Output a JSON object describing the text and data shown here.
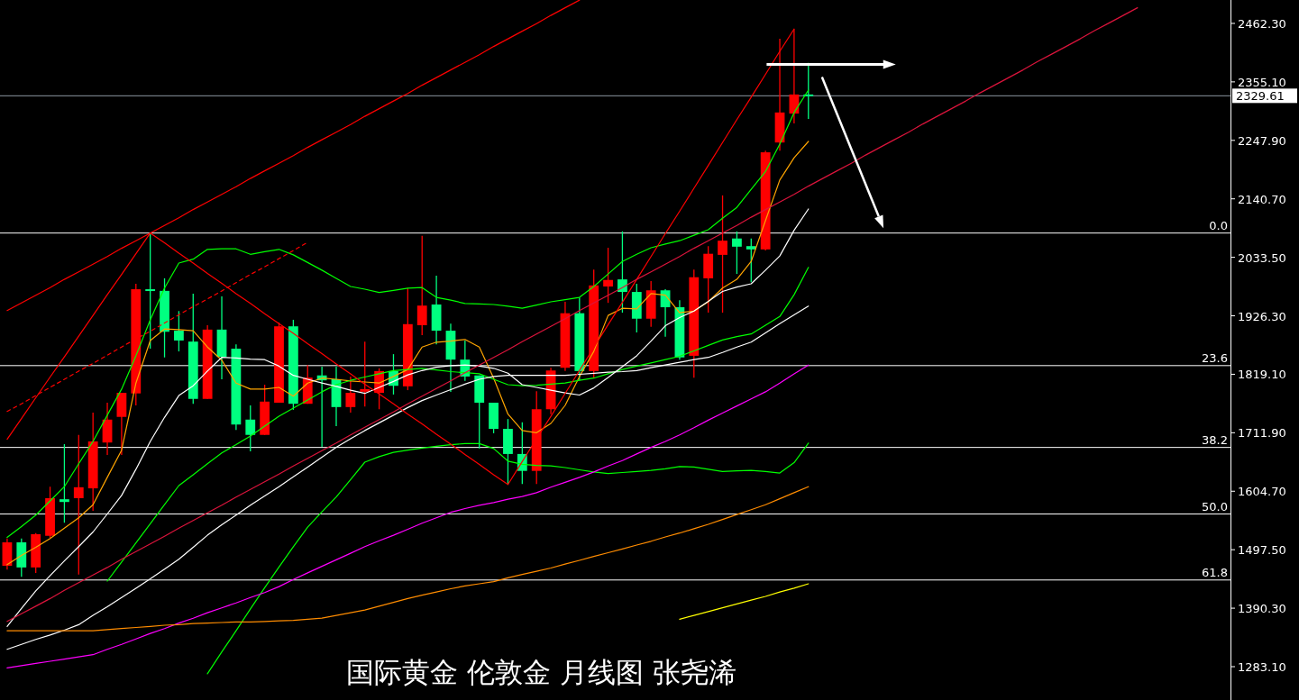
{
  "chart_data": {
    "type": "candlestick",
    "title": "国际黄金 伦敦金 月线图 张尧浠",
    "categories": [
      null,
      null,
      null,
      null,
      null,
      null,
      null,
      null,
      null,
      null,
      null,
      null,
      null,
      null,
      null,
      null,
      null,
      null,
      null,
      null,
      null,
      null,
      null,
      null,
      null,
      null,
      null,
      null,
      null,
      null,
      null,
      null,
      null,
      null,
      null,
      null,
      null,
      null,
      null,
      null,
      null,
      null,
      null,
      null,
      null,
      null,
      null,
      null,
      null,
      null,
      null,
      null,
      null,
      null,
      null,
      null,
      null,
      null,
      null,
      null,
      null,
      null,
      null,
      null,
      null,
      null,
      null,
      null,
      null,
      null,
      null,
      null,
      null,
      null,
      null,
      null,
      null,
      null,
      null,
      null,
      null,
      null,
      null,
      null,
      null,
      null
    ],
    "ohlc": [
      [
        1468,
        1518,
        1461,
        1511
      ],
      [
        1511,
        1518,
        1448,
        1465
      ],
      [
        1465,
        1528,
        1455,
        1526
      ],
      [
        1523,
        1613,
        1519,
        1592
      ],
      [
        1590,
        1691,
        1547,
        1585
      ],
      [
        1592,
        1708,
        1452,
        1612
      ],
      [
        1610,
        1749,
        1569,
        1696
      ],
      [
        1694,
        1767,
        1671,
        1736
      ],
      [
        1741,
        1785,
        1671,
        1785
      ],
      [
        1784,
        1985,
        1762,
        1975
      ],
      [
        1975,
        2078,
        1866,
        1972
      ],
      [
        1972,
        1995,
        1850,
        1897
      ],
      [
        1899,
        1935,
        1861,
        1881
      ],
      [
        1879,
        1967,
        1765,
        1774
      ],
      [
        1774,
        1909,
        1774,
        1901
      ],
      [
        1901,
        1962,
        1810,
        1851
      ],
      [
        1866,
        1874,
        1717,
        1727
      ],
      [
        1736,
        1762,
        1678,
        1708
      ],
      [
        1708,
        1800,
        1708,
        1769
      ],
      [
        1767,
        1914,
        1767,
        1907
      ],
      [
        1907,
        1919,
        1754,
        1765
      ],
      [
        1765,
        1836,
        1765,
        1813
      ],
      [
        1817,
        1833,
        1686,
        1808
      ],
      [
        1810,
        1833,
        1724,
        1759
      ],
      [
        1759,
        1815,
        1749,
        1785
      ],
      [
        1787,
        1879,
        1760,
        1792
      ],
      [
        1785,
        1830,
        1755,
        1825
      ],
      [
        1825,
        1856,
        1782,
        1798
      ],
      [
        1797,
        1977,
        1790,
        1911
      ],
      [
        1909,
        2073,
        1891,
        1945
      ],
      [
        1947,
        2000,
        1874,
        1899
      ],
      [
        1899,
        1912,
        1787,
        1846
      ],
      [
        1846,
        1881,
        1807,
        1815
      ],
      [
        1817,
        1817,
        1683,
        1767
      ],
      [
        1767,
        1767,
        1711,
        1719
      ],
      [
        1719,
        1737,
        1617,
        1673
      ],
      [
        1673,
        1731,
        1618,
        1642
      ],
      [
        1642,
        1788,
        1618,
        1755
      ],
      [
        1755,
        1831,
        1746,
        1826
      ],
      [
        1831,
        1952,
        1825,
        1931
      ],
      [
        1931,
        1960,
        1808,
        1825
      ],
      [
        1825,
        2011,
        1812,
        1982
      ],
      [
        1980,
        2051,
        1950,
        1992
      ],
      [
        1993,
        2081,
        1932,
        1970
      ],
      [
        1970,
        1985,
        1896,
        1921
      ],
      [
        1921,
        1990,
        1906,
        1973
      ],
      [
        1973,
        1975,
        1888,
        1942
      ],
      [
        1942,
        1955,
        1846,
        1850
      ],
      [
        1853,
        2011,
        1813,
        1997
      ],
      [
        1995,
        2054,
        1932,
        2040
      ],
      [
        2038,
        2147,
        1932,
        2064
      ],
      [
        2068,
        2081,
        2003,
        2053
      ],
      [
        2054,
        2068,
        1988,
        2048
      ],
      [
        2048,
        2229,
        2046,
        2226
      ],
      [
        2244,
        2434,
        2229,
        2299
      ],
      [
        2297,
        2452,
        2279,
        2332
      ],
      [
        2332,
        2390,
        2287,
        2330
      ],
      null,
      null,
      null,
      null,
      null,
      null,
      null,
      null,
      null,
      null,
      null,
      null,
      null,
      null,
      null,
      null,
      null,
      null,
      null,
      null,
      null,
      null,
      null,
      null,
      null,
      null,
      null,
      null,
      null
    ],
    "colors": [
      "#ff0000",
      "#00ff80",
      "#ff0000",
      "#ff0000",
      "#00ff80",
      "#ff0000",
      "#ff0000",
      "#ff0000",
      "#ff0000",
      "#ff0000",
      "#00ff80",
      "#00ff80",
      "#00ff80",
      "#00ff80",
      "#ff0000",
      "#00ff80",
      "#00ff80",
      "#00ff80",
      "#ff0000",
      "#ff0000",
      "#00ff80",
      "#ff0000",
      "#00ff80",
      "#00ff80",
      "#ff0000",
      "#ff0000",
      "#ff0000",
      "#00ff80",
      "#ff0000",
      "#ff0000",
      "#00ff80",
      "#00ff80",
      "#00ff80",
      "#00ff80",
      "#00ff80",
      "#00ff80",
      "#00ff80",
      "#ff0000",
      "#ff0000",
      "#ff0000",
      "#00ff80",
      "#ff0000",
      "#ff0000",
      "#00ff80",
      "#00ff80",
      "#ff0000",
      "#00ff80",
      "#00ff80",
      "#ff0000",
      "#ff0000",
      "#ff0000",
      "#00ff80",
      "#00ff80",
      "#ff0000",
      "#ff0000",
      "#ff0000",
      "#00ff80",
      null,
      null,
      null,
      null,
      null,
      null,
      null,
      null,
      null,
      null,
      null,
      null,
      null,
      null,
      null,
      null,
      null,
      null,
      null,
      null,
      null,
      null,
      null,
      null,
      null,
      null,
      null,
      null,
      null
    ],
    "ylim": [
      1222,
      2505.2
    ],
    "yticks": [
      {
        "value": 2462.3,
        "label": "2462.30"
      },
      {
        "value": 2355.1,
        "label": "2355.10"
      },
      {
        "value": 2247.9,
        "label": "2247.90"
      },
      {
        "value": 2140.7,
        "label": "2140.70"
      },
      {
        "value": 2033.5,
        "label": "2033.50"
      },
      {
        "value": 1926.3,
        "label": "1926.30"
      },
      {
        "value": 1819.1,
        "label": "1819.10"
      },
      {
        "value": 1711.9,
        "label": "1711.90"
      },
      {
        "value": 1604.7,
        "label": "1604.70"
      },
      {
        "value": 1497.5,
        "label": "1497.50"
      },
      {
        "value": 1390.3,
        "label": "1390.30"
      },
      {
        "value": 1283.1,
        "label": "1283.10"
      }
    ],
    "tick_labels": "y",
    "series": [
      {
        "type": "line",
        "color": "#ffa500",
        "values": [
          1470,
          1487,
          1502,
          1518,
          1537,
          1556,
          1580,
          1630,
          1680,
          1803,
          1881,
          1902,
          1901,
          1899,
          1869,
          1845,
          1803,
          1792,
          1792,
          1795,
          1779,
          1803,
          1812,
          1810,
          1807,
          1805,
          1803,
          1815,
          1828,
          1869,
          1878,
          1880,
          1883,
          1869,
          1812,
          1746,
          1716,
          1712,
          1729,
          1762,
          1815,
          1861,
          1927,
          1940,
          1939,
          1967,
          1964,
          1932,
          1935,
          1952,
          1977,
          1993,
          2026,
          2101,
          2175,
          2216,
          2246,
          null,
          null,
          null,
          null,
          null,
          null,
          null,
          null,
          null,
          null,
          null,
          null,
          null,
          null,
          null,
          null,
          null,
          null,
          null,
          null,
          null,
          null,
          null,
          null,
          null,
          null,
          null,
          null,
          null
        ]
      },
      {
        "type": "line",
        "color": "#00ff00",
        "values": [
          1520,
          1540,
          1561,
          1587,
          1613,
          1655,
          1696,
          1744,
          1792,
          1853,
          1919,
          1977,
          2023,
          2030,
          2048,
          2049,
          2049,
          2039,
          2044,
          2048,
          2038,
          2024,
          2010,
          1995,
          1980,
          1975,
          1969,
          1973,
          1977,
          1978,
          1960,
          1955,
          1949,
          1948,
          1947,
          1944,
          1940,
          1946,
          1952,
          1956,
          1960,
          1980,
          2003,
          2026,
          2039,
          2051,
          2058,
          2064,
          2074,
          2084,
          2105,
          2125,
          2158,
          2191,
          2241,
          2299,
          2340,
          null,
          null,
          null,
          null,
          null,
          null,
          null,
          null,
          null,
          null,
          null,
          null,
          null,
          null,
          null,
          null,
          null,
          null,
          null,
          null,
          null,
          null,
          null,
          null,
          null,
          null,
          null,
          null,
          null
        ]
      },
      {
        "type": "line",
        "color": "#00ff00",
        "values": [
          null,
          null,
          null,
          null,
          null,
          null,
          null,
          1440,
          1475,
          1510,
          1545,
          1580,
          1615,
          1635,
          1655,
          1675,
          1690,
          1706,
          1724,
          1742,
          1757,
          1772,
          1787,
          1800,
          1808,
          1814,
          1820,
          1826,
          1828,
          1830,
          1827,
          1824,
          1822,
          1820,
          1810,
          1800,
          1798,
          1799,
          1801,
          1803,
          1808,
          1812,
          1820,
          1828,
          1834,
          1840,
          1846,
          1852,
          1862,
          1872,
          1882,
          1888,
          1893,
          1909,
          1925,
          1965,
          2015,
          null,
          null,
          null,
          null,
          null,
          null,
          null,
          null,
          null,
          null,
          null,
          null,
          null,
          null,
          null,
          null,
          null,
          null,
          null,
          null,
          null,
          null,
          null,
          null,
          null,
          null,
          null,
          null,
          null
        ]
      },
      {
        "type": "line",
        "color": "#00ff00",
        "values": [
          null,
          null,
          null,
          null,
          null,
          null,
          null,
          null,
          null,
          null,
          null,
          null,
          null,
          null,
          1270,
          1310,
          1349,
          1389,
          1428,
          1466,
          1503,
          1539,
          1567,
          1594,
          1626,
          1658,
          1668,
          1676,
          1680,
          1684,
          1687,
          1690,
          1692,
          1692,
          1683,
          1660,
          1654,
          1652,
          1651,
          1648,
          1644,
          1640,
          1637,
          1639,
          1641,
          1643,
          1646,
          1650,
          1649,
          1645,
          1641,
          1642,
          1643,
          1641,
          1638,
          1657,
          1693,
          null,
          null,
          null,
          null,
          null,
          null,
          null,
          null,
          null,
          null,
          null,
          null,
          null,
          null,
          null,
          null,
          null,
          null,
          null,
          null,
          null,
          null,
          null,
          null,
          null,
          null,
          null,
          null,
          null
        ]
      },
      {
        "type": "line",
        "color": "#ffffff",
        "values": [
          1357,
          1390,
          1422,
          1450,
          1477,
          1503,
          1530,
          1563,
          1597,
          1645,
          1696,
          1740,
          1780,
          1798,
          1825,
          1850,
          1849,
          1847,
          1846,
          1834,
          1817,
          1810,
          1803,
          1797,
          1790,
          1784,
          1795,
          1806,
          1818,
          1826,
          1832,
          1835,
          1836,
          1834,
          1830,
          1821,
          1800,
          1795,
          1790,
          1785,
          1781,
          1794,
          1813,
          1833,
          1853,
          1880,
          1908,
          1923,
          1935,
          1953,
          1971,
          1979,
          1985,
          2010,
          2036,
          2083,
          2122,
          null,
          null,
          null,
          null,
          null,
          null,
          null,
          null,
          null,
          null,
          null,
          null,
          null,
          null,
          null,
          null,
          null,
          null,
          null,
          null,
          null,
          null,
          null,
          null,
          null,
          null,
          null,
          null,
          null
        ]
      },
      {
        "type": "line",
        "color": "#ffffff",
        "values": [
          1315,
          1324,
          1333,
          1341,
          1350,
          1360,
          1377,
          1393,
          1410,
          1427,
          1444,
          1462,
          1480,
          1502,
          1524,
          1543,
          1561,
          1579,
          1596,
          1613,
          1631,
          1649,
          1667,
          1685,
          1701,
          1716,
          1730,
          1744,
          1758,
          1771,
          1781,
          1791,
          1801,
          1810,
          1815,
          1817,
          1817,
          1817,
          1817,
          1817,
          1819,
          1821,
          1823,
          1824,
          1826,
          1831,
          1836,
          1841,
          1846,
          1850,
          1859,
          1869,
          1878,
          1895,
          1912,
          1928,
          1944,
          null,
          null,
          null,
          null,
          null,
          null,
          null,
          null,
          null,
          null,
          null,
          null,
          null,
          null,
          null,
          null,
          null,
          null,
          null,
          null,
          null,
          null,
          null,
          null,
          null,
          null,
          null,
          null,
          null
        ]
      },
      {
        "type": "line",
        "color": "#ff00ff",
        "values": [
          1281,
          1285,
          1289,
          1293,
          1297,
          1301,
          1305,
          1315,
          1324,
          1334,
          1344,
          1353,
          1363,
          1372,
          1382,
          1391,
          1400,
          1410,
          1419,
          1430,
          1443,
          1455,
          1467,
          1479,
          1491,
          1503,
          1514,
          1524,
          1535,
          1546,
          1556,
          1566,
          1573,
          1579,
          1584,
          1590,
          1595,
          1602,
          1612,
          1621,
          1630,
          1640,
          1651,
          1661,
          1673,
          1685,
          1696,
          1708,
          1721,
          1735,
          1748,
          1761,
          1774,
          1787,
          1803,
          1820,
          1836,
          null,
          null,
          null,
          null,
          null,
          null,
          null,
          null,
          null,
          null,
          null,
          null,
          null,
          null,
          null,
          null,
          null,
          null,
          null,
          null,
          null,
          null,
          null,
          null,
          null,
          null,
          null,
          null,
          null
        ]
      },
      {
        "type": "line",
        "color": "#ff8c00",
        "values": [
          1349,
          1349,
          1349,
          1349,
          1349,
          1349,
          1349,
          1351,
          1353,
          1355,
          1357,
          1359,
          1360,
          1362,
          1363,
          1364,
          1365,
          1365,
          1366,
          1367,
          1368,
          1370,
          1372,
          1377,
          1382,
          1387,
          1394,
          1401,
          1408,
          1414,
          1420,
          1426,
          1431,
          1435,
          1439,
          1446,
          1452,
          1458,
          1464,
          1471,
          1478,
          1485,
          1492,
          1499,
          1506,
          1513,
          1521,
          1528,
          1536,
          1544,
          1553,
          1562,
          1571,
          1580,
          1591,
          1602,
          1613,
          null,
          null,
          null,
          null,
          null,
          null,
          null,
          null,
          null,
          null,
          null,
          null,
          null,
          null,
          null,
          null,
          null,
          null,
          null,
          null,
          null,
          null,
          null,
          null,
          null,
          null,
          null,
          null,
          null
        ]
      },
      {
        "type": "line",
        "color": "#ffff00",
        "values": [
          null,
          null,
          null,
          null,
          null,
          null,
          null,
          null,
          null,
          null,
          null,
          null,
          null,
          null,
          null,
          null,
          null,
          null,
          null,
          null,
          null,
          null,
          null,
          null,
          null,
          null,
          null,
          null,
          null,
          null,
          null,
          null,
          null,
          null,
          null,
          null,
          null,
          null,
          null,
          null,
          null,
          null,
          null,
          null,
          null,
          null,
          null,
          1370,
          1377,
          1384,
          1391,
          1398,
          1405,
          1412,
          1420,
          1427,
          1435,
          null,
          null,
          null,
          null,
          null,
          null,
          null,
          null,
          null,
          null,
          null,
          null,
          null,
          null,
          null,
          null,
          null,
          null,
          null,
          null,
          null,
          null,
          null,
          null,
          null,
          null,
          null,
          null,
          null
        ]
      },
      {
        "type": "line",
        "color": "#ff0000",
        "values": [
          1936,
          1950,
          1964,
          1978,
          1993,
          2007,
          2021,
          2035,
          2050,
          2064,
          2078,
          2092,
          2106,
          2121,
          2135,
          2149,
          2163,
          2178,
          2192,
          2206,
          2220,
          2235,
          2249,
          2263,
          2277,
          2292,
          2306,
          2320,
          2334,
          2349,
          2363,
          2377,
          2391,
          2405,
          2420,
          2434,
          2448,
          2462,
          2477,
          2491,
          2505,
          null,
          null,
          null,
          null,
          null,
          null,
          null,
          null,
          null,
          null,
          null,
          null,
          null,
          null,
          null,
          null,
          null,
          null,
          null,
          null,
          null,
          null,
          null,
          null,
          null,
          null,
          null,
          null,
          null,
          null,
          null,
          null,
          null,
          null,
          null,
          null,
          null,
          null,
          null,
          null,
          null,
          null,
          null,
          null,
          null
        ]
      },
      {
        "type": "line",
        "color": "#ff0000",
        "values": [
          1700,
          1738,
          1776,
          1814,
          1851,
          1889,
          1927,
          1965,
          2002,
          2040,
          2078,
          null,
          null,
          null,
          null,
          null,
          null,
          null,
          null,
          null,
          null,
          null,
          null,
          null,
          null,
          null,
          null,
          null,
          null,
          null,
          null,
          null,
          null,
          null,
          null,
          null,
          null,
          null,
          null,
          null,
          null,
          null,
          null,
          null,
          null,
          null,
          null,
          null,
          null,
          null,
          null,
          null,
          null,
          null,
          null,
          null,
          null,
          null,
          null,
          null,
          null,
          null,
          null,
          null,
          null,
          null,
          null,
          null,
          null,
          null,
          null,
          null,
          null,
          null,
          null,
          null,
          null,
          null,
          null,
          null,
          null,
          null,
          null,
          null,
          null,
          null
        ]
      },
      {
        "type": "line",
        "color": "#ff0000",
        "values": [
          null,
          null,
          null,
          null,
          null,
          null,
          null,
          null,
          null,
          null,
          2078,
          2060,
          2041,
          2023,
          2004,
          1986,
          1967,
          1949,
          1930,
          1912,
          1894,
          1875,
          1857,
          1838,
          1820,
          1801,
          1783,
          1765,
          1746,
          1728,
          1709,
          1691,
          1672,
          1654,
          1635,
          1617,
          1659,
          1701,
          1742,
          1784,
          1826,
          1868,
          1910,
          1951,
          1993,
          2035,
          2077,
          2118,
          2160,
          2202,
          2244,
          2286,
          2327,
          2369,
          2411,
          2452,
          null,
          null,
          null,
          null,
          null,
          null,
          null,
          null,
          null,
          null,
          null,
          null,
          null,
          null,
          null,
          null,
          null,
          null,
          null,
          null,
          null,
          null,
          null,
          null,
          null,
          null,
          null,
          null,
          null,
          null
        ]
      },
      {
        "type": "line",
        "color": "#ff0000",
        "line_style": "dashed",
        "values": [
          1751,
          1765,
          1780,
          1795,
          1810,
          1825,
          1839,
          1854,
          1869,
          1884,
          1898,
          1913,
          1928,
          1943,
          1957,
          1972,
          1987,
          2002,
          2016,
          2031,
          2046,
          2061,
          null,
          null,
          null,
          null,
          null,
          null,
          null,
          null,
          null,
          null,
          null,
          null,
          null,
          null,
          null,
          null,
          null,
          null,
          null,
          null,
          null,
          null,
          null,
          null,
          null,
          null,
          null,
          null,
          null,
          null,
          null,
          null,
          null,
          null,
          null,
          null,
          null,
          null,
          null,
          null,
          null,
          null,
          null,
          null,
          null,
          null,
          null,
          null,
          null,
          null,
          null,
          null,
          null,
          null,
          null,
          null,
          null,
          null,
          null,
          null,
          null,
          null,
          null,
          null
        ]
      },
      {
        "type": "line",
        "color": "#dc143c",
        "values": [
          1366,
          1380,
          1394,
          1408,
          1423,
          1437,
          1451,
          1465,
          1480,
          1494,
          1508,
          1522,
          1537,
          1551,
          1565,
          1579,
          1594,
          1608,
          1622,
          1636,
          1651,
          1665,
          1679,
          1693,
          1708,
          1722,
          1736,
          1750,
          1765,
          1779,
          1793,
          1807,
          1822,
          1836,
          1850,
          1864,
          1879,
          1893,
          1907,
          1921,
          1936,
          1950,
          1964,
          1978,
          1993,
          2007,
          2021,
          2035,
          2050,
          2064,
          2078,
          2092,
          2107,
          2121,
          2135,
          2149,
          2164,
          2178,
          2192,
          2206,
          2221,
          2235,
          2249,
          2263,
          2278,
          2292,
          2306,
          2320,
          2335,
          2349,
          2363,
          2377,
          2392,
          2406,
          2420,
          2434,
          2449,
          2463,
          2477,
          2491,
          null,
          null,
          null,
          null,
          null,
          null
        ]
      }
    ],
    "ref_lines": [
      {
        "axis": "y",
        "value": 2078,
        "color": "#ffffff"
      },
      {
        "axis": "y",
        "value": 1835,
        "color": "#ffffff"
      },
      {
        "axis": "y",
        "value": 1685,
        "color": "#ffffff"
      },
      {
        "axis": "y",
        "value": 1563,
        "color": "#ffffff"
      },
      {
        "axis": "y",
        "value": 1442,
        "color": "#ffffff"
      },
      {
        "axis": "y",
        "value": 2329.61,
        "label": "2329.61",
        "color": "#8c96a0"
      }
    ],
    "annotations": [
      {
        "text": "0.0",
        "y": 2078
      },
      {
        "text": "23.6",
        "y": 1835
      },
      {
        "text": "38.2",
        "y": 1685
      },
      {
        "text": "50.0",
        "y": 1563
      },
      {
        "text": "61.8",
        "y": 1442
      }
    ]
  }
}
